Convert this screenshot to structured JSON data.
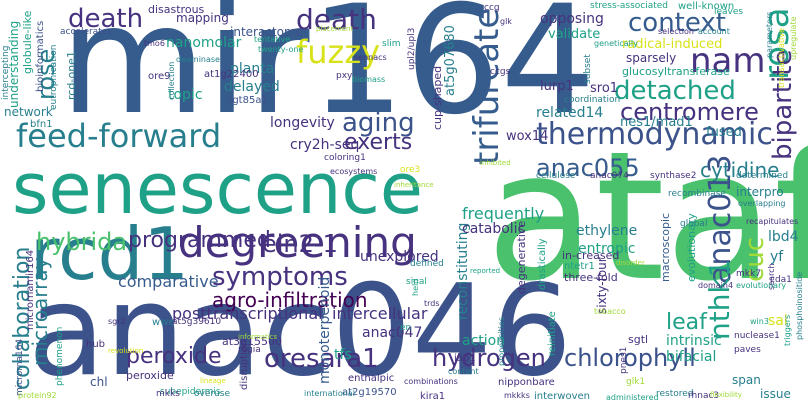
{
  "palette": {
    "dark_purple": "#440154",
    "indigo": "#46327e",
    "blue": "#365c8d",
    "steel": "#3b528b",
    "teal_blue": "#277f8e",
    "teal": "#1fa187",
    "green": "#4ac16d",
    "lime": "#a0da39",
    "yellow": "#d8e219"
  },
  "words": [
    {
      "text": "ataf",
      "color": "green"
    },
    {
      "text": "mir164",
      "color": "blue"
    },
    {
      "text": "anac046",
      "color": "steel"
    },
    {
      "text": "senescence",
      "color": "teal"
    },
    {
      "text": "rcd1",
      "color": "teal_blue"
    },
    {
      "text": "degreening",
      "color": "indigo"
    },
    {
      "text": "feed-forward",
      "color": "teal_blue"
    },
    {
      "text": "death",
      "color": "indigo"
    },
    {
      "text": "death",
      "color": "indigo"
    },
    {
      "text": "rose",
      "color": "teal_blue"
    },
    {
      "text": "context",
      "color": "blue"
    },
    {
      "text": "nam",
      "color": "indigo"
    },
    {
      "text": "rosa",
      "color": "teal"
    },
    {
      "text": "fuzzy",
      "color": "yellow"
    },
    {
      "text": "detached",
      "color": "teal"
    },
    {
      "text": "centromere",
      "color": "indigo"
    },
    {
      "text": "aging",
      "color": "steel"
    },
    {
      "text": "exerts",
      "color": "indigo"
    },
    {
      "text": "thermodynamic",
      "color": "steel"
    },
    {
      "text": "trifurcate",
      "color": "blue"
    },
    {
      "text": "bipartite",
      "color": "indigo"
    },
    {
      "text": "anac055",
      "color": "blue"
    },
    {
      "text": "cytidine",
      "color": "teal_blue"
    },
    {
      "text": "hybrida",
      "color": "green"
    },
    {
      "text": "programmed",
      "color": "indigo"
    },
    {
      "text": "ein2-1",
      "color": "indigo"
    },
    {
      "text": "symptoms",
      "color": "indigo"
    },
    {
      "text": "agro-infiltration",
      "color": "dark_purple"
    },
    {
      "text": "anac013",
      "color": "steel"
    },
    {
      "text": "cuc",
      "color": "lime"
    },
    {
      "text": "nthk1",
      "color": "teal"
    },
    {
      "text": "collaboration",
      "color": "teal_blue"
    },
    {
      "text": "microarray",
      "color": "teal_blue"
    },
    {
      "text": "peroxide",
      "color": "indigo"
    },
    {
      "text": "oresara1",
      "color": "indigo"
    },
    {
      "text": "hydrogen",
      "color": "indigo"
    },
    {
      "text": "chlorophyll",
      "color": "steel"
    },
    {
      "text": "leaf",
      "color": "teal"
    },
    {
      "text": "monoterpenoid",
      "color": "blue"
    },
    {
      "text": "reconstituting",
      "color": "teal_blue"
    },
    {
      "text": "posttranscriptional",
      "color": "indigo"
    },
    {
      "text": "intercellular",
      "color": "indigo"
    },
    {
      "text": "comparative",
      "color": "blue"
    },
    {
      "text": "unexplored",
      "color": "indigo"
    },
    {
      "text": "frequently",
      "color": "teal"
    },
    {
      "text": "catabolic",
      "color": "indigo"
    },
    {
      "text": "ethylene",
      "color": "teal_blue"
    },
    {
      "text": "entropic",
      "color": "teal"
    },
    {
      "text": "intrinsic",
      "color": "teal"
    },
    {
      "text": "bifacial",
      "color": "teal"
    },
    {
      "text": "lbd4",
      "color": "teal_blue"
    },
    {
      "text": "yf",
      "color": "teal_blue"
    },
    {
      "text": "sal",
      "color": "yellow"
    },
    {
      "text": "span",
      "color": "teal_blue"
    },
    {
      "text": "issue",
      "color": "teal_blue"
    },
    {
      "text": "sgtl",
      "color": "indigo"
    },
    {
      "text": "tfs",
      "color": "teal"
    },
    {
      "text": "action",
      "color": "teal"
    },
    {
      "text": "anac047",
      "color": "indigo"
    },
    {
      "text": "chl",
      "color": "steel"
    },
    {
      "text": "peroxide",
      "color": "indigo"
    },
    {
      "text": "sixty-four",
      "color": "indigo"
    },
    {
      "text": "degenerative",
      "color": "indigo"
    },
    {
      "text": "three-fold",
      "color": "indigo"
    },
    {
      "text": "in-creased",
      "color": "indigo"
    },
    {
      "text": "ntetr1",
      "color": "teal"
    },
    {
      "text": "drastically",
      "color": "teal"
    },
    {
      "text": "reinitiate",
      "color": "teal"
    },
    {
      "text": "macroscopic",
      "color": "blue"
    },
    {
      "text": "evolutionary",
      "color": "teal"
    },
    {
      "text": "related14",
      "color": "teal_blue"
    },
    {
      "text": "lurp1",
      "color": "indigo"
    },
    {
      "text": "sro1",
      "color": "indigo"
    },
    {
      "text": "nes1/mad1",
      "color": "teal_blue"
    },
    {
      "text": "fused",
      "color": "teal_blue"
    },
    {
      "text": "interpro",
      "color": "teal_blue"
    },
    {
      "text": "wox14",
      "color": "indigo"
    },
    {
      "text": "cry2h-seq",
      "color": "indigo"
    },
    {
      "text": "longevity",
      "color": "indigo"
    },
    {
      "text": "delayed",
      "color": "teal_blue"
    },
    {
      "text": "topic",
      "color": "teal"
    },
    {
      "text": "planta",
      "color": "teal_blue"
    },
    {
      "text": "nanomolar",
      "color": "teal"
    },
    {
      "text": "interactome",
      "color": "steel"
    },
    {
      "text": "mapping",
      "color": "indigo"
    },
    {
      "text": "disastrous",
      "color": "indigo"
    },
    {
      "text": "cup-shaped",
      "color": "indigo"
    },
    {
      "text": "at5g07680",
      "color": "teal_blue"
    },
    {
      "text": "opposing",
      "color": "indigo"
    },
    {
      "text": "validate",
      "color": "teal"
    },
    {
      "text": "radical-induced",
      "color": "yellow"
    },
    {
      "text": "sparsely",
      "color": "indigo"
    },
    {
      "text": "glucosyltransferase",
      "color": "teal"
    },
    {
      "text": "well-known",
      "color": "teal"
    },
    {
      "text": "stress-associated",
      "color": "teal"
    },
    {
      "text": "understanding",
      "color": "teal"
    },
    {
      "text": "globule-like",
      "color": "teal"
    },
    {
      "text": "bioinformatics",
      "color": "steel"
    },
    {
      "text": "accelerates",
      "color": "steel"
    },
    {
      "text": "eutrophication",
      "color": "teal_blue"
    },
    {
      "text": "rcd-one1",
      "color": "teal_blue"
    },
    {
      "text": "network",
      "color": "teal_blue"
    },
    {
      "text": "bfn1",
      "color": "teal_blue"
    },
    {
      "text": "intercepting",
      "color": "teal_blue"
    },
    {
      "text": "ore9",
      "color": "indigo"
    },
    {
      "text": "at1g22400",
      "color": "indigo"
    },
    {
      "text": "ugt85a1",
      "color": "steel"
    },
    {
      "text": "microrna164",
      "color": "steel"
    },
    {
      "text": "micrornamir164",
      "color": "indigo"
    },
    {
      "text": "phenomenon",
      "color": "teal"
    },
    {
      "text": "protein92",
      "color": "lime"
    },
    {
      "text": "hub",
      "color": "indigo"
    },
    {
      "text": "wwe",
      "color": "teal_blue"
    },
    {
      "text": "at3g15500",
      "color": "indigo"
    },
    {
      "text": "at5g39610",
      "color": "indigo"
    },
    {
      "text": "regia",
      "color": "indigo"
    },
    {
      "text": "disruption",
      "color": "indigo"
    },
    {
      "text": "subepidermis",
      "color": "teal"
    },
    {
      "text": "mkks",
      "color": "indigo"
    },
    {
      "text": "overuse",
      "color": "teal_blue"
    },
    {
      "text": "enthalpic",
      "color": "indigo"
    },
    {
      "text": "at2g19570",
      "color": "steel"
    },
    {
      "text": "kira1",
      "color": "indigo"
    },
    {
      "text": "interwoven",
      "color": "teal_blue"
    },
    {
      "text": "nipponbare",
      "color": "indigo"
    },
    {
      "text": "combinations",
      "color": "indigo"
    },
    {
      "text": "content",
      "color": "teal_blue"
    },
    {
      "text": "iap1",
      "color": "indigo"
    },
    {
      "text": "glk1",
      "color": "lime"
    },
    {
      "text": "pnes1",
      "color": "indigo"
    },
    {
      "text": "nuclease1",
      "color": "indigo"
    },
    {
      "text": "paves",
      "color": "indigo"
    },
    {
      "text": "mkk7",
      "color": "indigo"
    },
    {
      "text": "cda1",
      "color": "indigo"
    },
    {
      "text": "global",
      "color": "teal_blue"
    },
    {
      "text": "restored",
      "color": "teal_blue"
    },
    {
      "text": "rhnac3",
      "color": "indigo"
    },
    {
      "text": "administered",
      "color": "teal"
    },
    {
      "text": "coloring1",
      "color": "indigo"
    },
    {
      "text": "ecosystems",
      "color": "indigo"
    },
    {
      "text": "ore3",
      "color": "yellow"
    },
    {
      "text": "defined",
      "color": "teal_blue"
    },
    {
      "text": "sinal",
      "color": "teal"
    },
    {
      "text": "held",
      "color": "teal"
    },
    {
      "text": "trds",
      "color": "indigo"
    },
    {
      "text": "slim",
      "color": "teal"
    },
    {
      "text": "pxy",
      "color": "indigo"
    },
    {
      "text": "biomass",
      "color": "teal"
    },
    {
      "text": "tentative",
      "color": "teal"
    },
    {
      "text": "twenty-one",
      "color": "teal"
    },
    {
      "text": "deaminase",
      "color": "teal_blue"
    },
    {
      "text": "collection",
      "color": "teal_blue"
    },
    {
      "text": "tmo6",
      "color": "indigo"
    },
    {
      "text": "ccg",
      "color": "indigo"
    },
    {
      "text": "ccgs",
      "color": "indigo"
    },
    {
      "text": "glk",
      "color": "indigo"
    },
    {
      "text": "recombinase",
      "color": "teal_blue"
    },
    {
      "text": "selection",
      "color": "indigo"
    },
    {
      "text": "account",
      "color": "teal_blue"
    },
    {
      "text": "leaves",
      "color": "teal"
    },
    {
      "text": "subset",
      "color": "teal_blue"
    },
    {
      "text": "genetically",
      "color": "teal"
    },
    {
      "text": "coordination",
      "color": "teal_blue"
    },
    {
      "text": "cellulose",
      "color": "teal_blue"
    },
    {
      "text": "anac074",
      "color": "indigo"
    },
    {
      "text": "synthase2",
      "color": "indigo"
    },
    {
      "text": "determined",
      "color": "teal_blue"
    },
    {
      "text": "overlapping",
      "color": "teal_blue"
    },
    {
      "text": "recapitulates",
      "color": "indigo"
    },
    {
      "text": "parameters",
      "color": "teal_blue"
    },
    {
      "text": "transactivative",
      "color": "yellow"
    },
    {
      "text": "upregulate",
      "color": "lime"
    },
    {
      "text": "phosphoinositide",
      "color": "teal_blue"
    },
    {
      "text": "search",
      "color": "indigo"
    },
    {
      "text": "triggers",
      "color": "teal"
    },
    {
      "text": "win3",
      "color": "teal"
    },
    {
      "text": "domain4",
      "color": "indigo"
    },
    {
      "text": "evolutionary",
      "color": "teal"
    },
    {
      "text": "sennacs",
      "color": "indigo"
    },
    {
      "text": "upl2/upl3",
      "color": "indigo"
    },
    {
      "text": "inheritance",
      "color": "lime"
    },
    {
      "text": "tobacco",
      "color": "lime"
    },
    {
      "text": "disorder",
      "color": "lime"
    },
    {
      "text": "reported",
      "color": "teal"
    },
    {
      "text": "international",
      "color": "teal_blue"
    },
    {
      "text": "inhibited",
      "color": "lime"
    },
    {
      "text": "informatics",
      "color": "lime"
    },
    {
      "text": "revolution",
      "color": "yellow"
    },
    {
      "text": "lineage",
      "color": "yellow"
    },
    {
      "text": "sgr2",
      "color": "indigo"
    },
    {
      "text": "en",
      "color": "teal"
    },
    {
      "text": "mkkks",
      "color": "indigo"
    },
    {
      "text": "propensities",
      "color": "teal_blue"
    },
    {
      "text": "flexibility",
      "color": "lime"
    },
    {
      "text": "placement",
      "color": "lime"
    }
  ]
}
